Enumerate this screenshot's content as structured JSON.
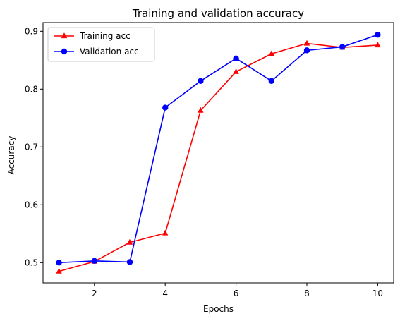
{
  "chart_data": {
    "type": "line",
    "title": "Training and validation accuracy",
    "xlabel": "Epochs",
    "ylabel": "Accuracy",
    "xlim": [
      0.55,
      10.45
    ],
    "ylim": [
      0.465,
      0.915
    ],
    "xticks": [
      2,
      4,
      6,
      8,
      10
    ],
    "yticks": [
      0.5,
      0.6,
      0.7,
      0.8,
      0.9
    ],
    "ytick_labels": [
      "0.5",
      "0.6",
      "0.7",
      "0.8",
      "0.9"
    ],
    "grid": false,
    "legend_position": "top-left",
    "x": [
      1,
      2,
      3,
      4,
      5,
      6,
      7,
      8,
      9,
      10
    ],
    "series": [
      {
        "name": "Training acc",
        "color": "#ff0000",
        "marker": "triangle",
        "values": [
          0.485,
          0.502,
          0.535,
          0.551,
          0.763,
          0.83,
          0.861,
          0.879,
          0.872,
          0.876
        ]
      },
      {
        "name": "Validation acc",
        "color": "#0000ff",
        "marker": "circle",
        "values": [
          0.5,
          0.503,
          0.501,
          0.768,
          0.814,
          0.853,
          0.814,
          0.867,
          0.873,
          0.894
        ]
      }
    ]
  }
}
